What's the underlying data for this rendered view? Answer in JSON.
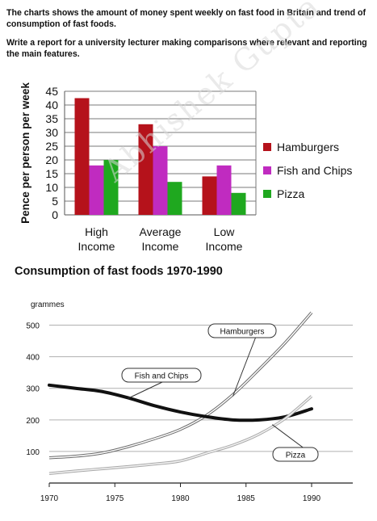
{
  "prompt": {
    "line1": "The charts shows the amount of money spent weekly on fast food in Britain and trend of consumption of fast foods.",
    "line2": "Write a report for a university lecturer making comparisons where relevant and reporting the main features."
  },
  "watermark": "Abhishek Gupta",
  "chart_data": [
    {
      "type": "bar",
      "title": "",
      "ylabel": "Pence per person per week",
      "ylim": [
        0,
        45
      ],
      "yticks": [
        0,
        5,
        10,
        15,
        20,
        25,
        30,
        35,
        40,
        45
      ],
      "categories": [
        [
          "High",
          "Income"
        ],
        [
          "Average",
          "Income"
        ],
        [
          "Low",
          "Income"
        ]
      ],
      "series": [
        {
          "name": "Hamburgers",
          "color": "#b5121b",
          "values": [
            42.5,
            33,
            14
          ]
        },
        {
          "name": "Fish and Chips",
          "color": "#c02bc0",
          "values": [
            18,
            25,
            18
          ]
        },
        {
          "name": "Pizza",
          "color": "#1fa81f",
          "values": [
            20,
            12,
            8
          ]
        }
      ],
      "legend": "right",
      "grid": true
    },
    {
      "type": "line",
      "title": "Consumption of fast foods 1970-1990",
      "ylabel": "grammes",
      "xlim": [
        1970,
        1990
      ],
      "ylim": [
        0,
        550
      ],
      "xticks": [
        1970,
        1975,
        1980,
        1985,
        1990
      ],
      "yticks": [
        100,
        200,
        300,
        400,
        500
      ],
      "grid": true,
      "series": [
        {
          "name": "Hamburgers",
          "style": "double",
          "x": [
            1970,
            1972,
            1974,
            1976,
            1978,
            1980,
            1982,
            1984,
            1986,
            1988,
            1990
          ],
          "y": [
            80,
            85,
            95,
            115,
            140,
            170,
            215,
            280,
            360,
            445,
            540
          ]
        },
        {
          "name": "Fish and Chips",
          "style": "thick",
          "x": [
            1970,
            1972,
            1974,
            1976,
            1978,
            1980,
            1982,
            1984,
            1986,
            1988,
            1990
          ],
          "y": [
            310,
            300,
            290,
            270,
            245,
            225,
            210,
            200,
            200,
            210,
            235
          ]
        },
        {
          "name": "Pizza",
          "style": "double-light",
          "x": [
            1970,
            1972,
            1974,
            1976,
            1978,
            1980,
            1982,
            1984,
            1986,
            1988,
            1990
          ],
          "y": [
            30,
            38,
            45,
            52,
            60,
            70,
            95,
            120,
            155,
            205,
            275
          ]
        }
      ]
    }
  ]
}
